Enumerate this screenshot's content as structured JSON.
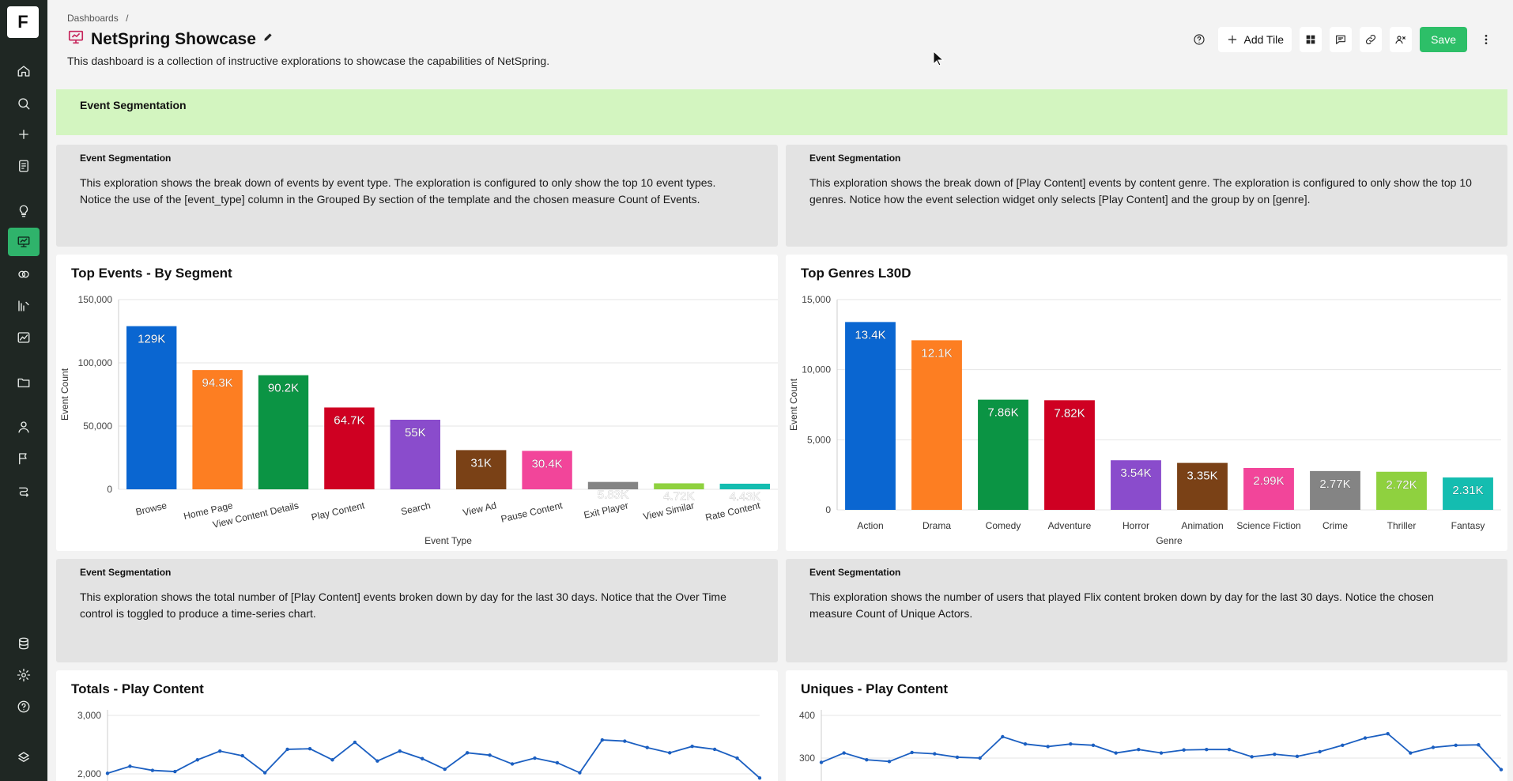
{
  "rail": {
    "logo": "F",
    "items": [
      {
        "icon": "home-icon"
      },
      {
        "icon": "search-icon"
      },
      {
        "icon": "plus-icon"
      },
      {
        "icon": "notebook-icon"
      },
      {
        "icon": "lightbulb-icon"
      },
      {
        "icon": "dashboard-icon",
        "active": true
      },
      {
        "icon": "venn-icon"
      },
      {
        "icon": "pipeline-icon"
      },
      {
        "icon": "chart-icon"
      },
      {
        "icon": "folder-icon"
      },
      {
        "icon": "user-icon"
      },
      {
        "icon": "flag-icon"
      },
      {
        "icon": "workflow-icon"
      },
      {
        "icon": "database-icon"
      },
      {
        "icon": "settings-icon"
      },
      {
        "icon": "help-icon"
      },
      {
        "icon": "logo-mark-icon"
      }
    ]
  },
  "header": {
    "breadcrumb": "Dashboards",
    "breadcrumb_sep": "/",
    "title": "NetSpring Showcase",
    "description": "This dashboard is a collection of instructive explorations to showcase the capabilities of NetSpring."
  },
  "toolbar": {
    "add_tile_label": "Add Tile",
    "save_label": "Save"
  },
  "banner": {
    "title": "Event Segmentation"
  },
  "text_tiles": [
    {
      "label": "Event Segmentation",
      "body": "This exploration shows the break down of events by event type. The exploration is configured to only show the top 10 event types. Notice the use of the [event_type] column in the Grouped By section of the template and the chosen measure Count of Events."
    },
    {
      "label": "Event Segmentation",
      "body": "This exploration shows the break down of [Play Content] events by content genre. The exploration is configured to only show the top 10 genres. Notice how the event selection widget only selects [Play Content] and the group by on [genre]."
    },
    {
      "label": "Event Segmentation",
      "body": "This exploration shows the total number of [Play Content] events broken down by day for the last 30 days. Notice that the Over Time control is toggled to produce a time-series chart."
    },
    {
      "label": "Event Segmentation",
      "body": "This exploration shows the number of users that played Flix content broken down by day for the last 30 days. Notice the chosen measure Count of Unique Actors."
    }
  ],
  "colors": {
    "accent": "#2dbf68",
    "banner": "#d3f5c0",
    "series": [
      "#0a66d1",
      "#fd7e22",
      "#0b9444",
      "#cf0022",
      "#8a4ccc",
      "#7a4116",
      "#f2459a",
      "#848484",
      "#8fd13f",
      "#14bdb0"
    ],
    "line": "#1b5fc1"
  },
  "chart_data": [
    {
      "type": "bar",
      "title": "Top Events - By Segment",
      "xlabel": "Event Type",
      "ylabel": "Event Count",
      "ylim": [
        0,
        150000
      ],
      "yticks": [
        "0",
        "50,000",
        "100,000",
        "150,000"
      ],
      "ytick_values": [
        0,
        50000,
        100000,
        150000
      ],
      "categories": [
        "Browse",
        "Home Page",
        "View Content Details",
        "Play Content",
        "Search",
        "View Ad",
        "Pause Content",
        "Exit Player",
        "View Similar",
        "Rate Content"
      ],
      "values": [
        129000,
        94300,
        90200,
        64700,
        55000,
        31000,
        30400,
        5830,
        4720,
        4430
      ],
      "labels": [
        "129K",
        "94.3K",
        "90.2K",
        "64.7K",
        "55K",
        "31K",
        "30.4K",
        "5.83K",
        "4.72K",
        "4.43K"
      ],
      "grid": true
    },
    {
      "type": "bar",
      "title": "Top Genres L30D",
      "xlabel": "Genre",
      "ylabel": "Event Count",
      "ylim": [
        0,
        15000
      ],
      "yticks": [
        "0",
        "5,000",
        "10,000",
        "15,000"
      ],
      "ytick_values": [
        0,
        5000,
        10000,
        15000
      ],
      "categories": [
        "Action",
        "Drama",
        "Comedy",
        "Adventure",
        "Horror",
        "Animation",
        "Science Fiction",
        "Crime",
        "Thriller",
        "Fantasy"
      ],
      "values": [
        13400,
        12100,
        7860,
        7820,
        3540,
        3350,
        2990,
        2770,
        2720,
        2310
      ],
      "labels": [
        "13.4K",
        "12.1K",
        "7.86K",
        "7.82K",
        "3.54K",
        "3.35K",
        "2.99K",
        "2.77K",
        "2.72K",
        "2.31K"
      ],
      "grid": true
    },
    {
      "type": "line",
      "title": "Totals - Play Content",
      "yticks": [
        "2,000",
        "3,000"
      ],
      "ytick_values": [
        2000,
        3000
      ],
      "values": [
        2010,
        2130,
        2060,
        2040,
        2240,
        2390,
        2310,
        2020,
        2420,
        2430,
        2240,
        2540,
        2220,
        2390,
        2260,
        2080,
        2360,
        2320,
        2170,
        2270,
        2190,
        2020,
        2580,
        2560,
        2450,
        2360,
        2470,
        2420,
        2270,
        1930
      ],
      "grid": true
    },
    {
      "type": "line",
      "title": "Uniques - Play Content",
      "yticks": [
        "300",
        "400"
      ],
      "ytick_values": [
        300,
        400
      ],
      "values": [
        290,
        312,
        296,
        292,
        313,
        310,
        302,
        300,
        350,
        333,
        327,
        333,
        330,
        312,
        320,
        312,
        319,
        320,
        320,
        303,
        309,
        304,
        315,
        330,
        347,
        357,
        312,
        325,
        330,
        331,
        273
      ],
      "grid": true
    }
  ]
}
